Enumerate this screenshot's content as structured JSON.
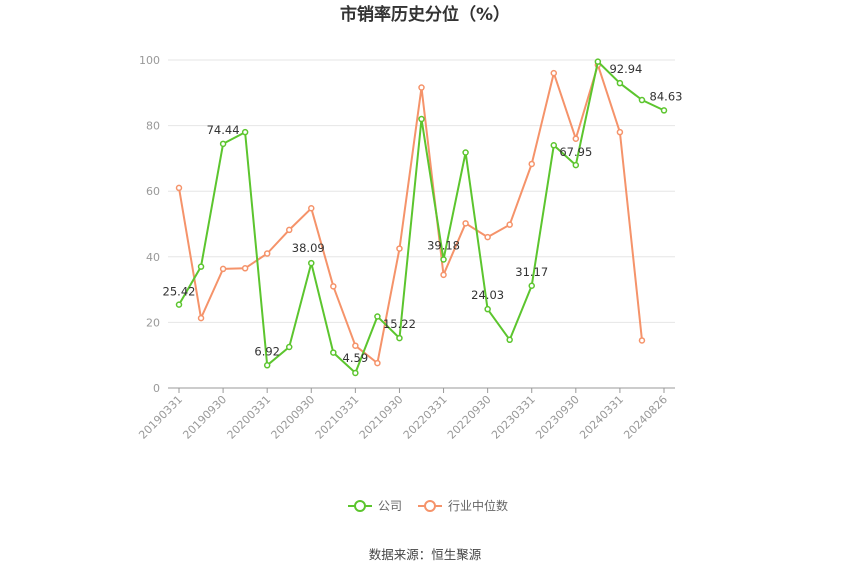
{
  "chart_data": {
    "type": "line",
    "title": "市销率历史分位（%）",
    "source": "数据来源：恒生聚源",
    "xlabel": "",
    "ylabel": "",
    "ylim": [
      0,
      100
    ],
    "yticks": [
      0,
      20,
      40,
      60,
      80,
      100
    ],
    "grid": true,
    "legend_position": "bottom",
    "x": [
      "20190331",
      "20190630",
      "20190930",
      "20191231",
      "20200331",
      "20200630",
      "20200930",
      "20201231",
      "20210331",
      "20210630",
      "20210930",
      "20211231",
      "20220331",
      "20220630",
      "20220930",
      "20221231",
      "20230331",
      "20230630",
      "20230930",
      "20231231",
      "20240331",
      "20240630",
      "20240826"
    ],
    "xtick_labels": [
      "20190331",
      "20190930",
      "20200331",
      "20200930",
      "20210331",
      "20210930",
      "20220331",
      "20220930",
      "20230331",
      "20230930",
      "20240331",
      "20240826"
    ],
    "series": [
      {
        "name": "公司",
        "color": "#5cc52e",
        "values": [
          25.42,
          37,
          74.44,
          78,
          6.92,
          12.5,
          38.09,
          10.8,
          4.59,
          21.8,
          15.22,
          82,
          39.18,
          71.8,
          24.03,
          14.7,
          31.17,
          74,
          67.95,
          99.5,
          92.94,
          87.8,
          84.63
        ],
        "labels": {
          "0": "25.42",
          "2": "74.44",
          "4": "6.92",
          "6": "38.09",
          "8": "4.59",
          "10": "15.22",
          "12": "39.18",
          "14": "24.03",
          "16": "31.17",
          "18": "67.95",
          "20": "92.94",
          "22": "84.63"
        }
      },
      {
        "name": "行业中位数",
        "color": "#f5936a",
        "values": [
          61,
          21.3,
          36.3,
          36.5,
          41,
          48.2,
          54.8,
          31,
          12.9,
          7.6,
          42.5,
          91.6,
          34.5,
          50.2,
          46,
          49.8,
          68.3,
          96,
          76,
          98.5,
          78,
          14.5,
          null
        ]
      }
    ]
  }
}
